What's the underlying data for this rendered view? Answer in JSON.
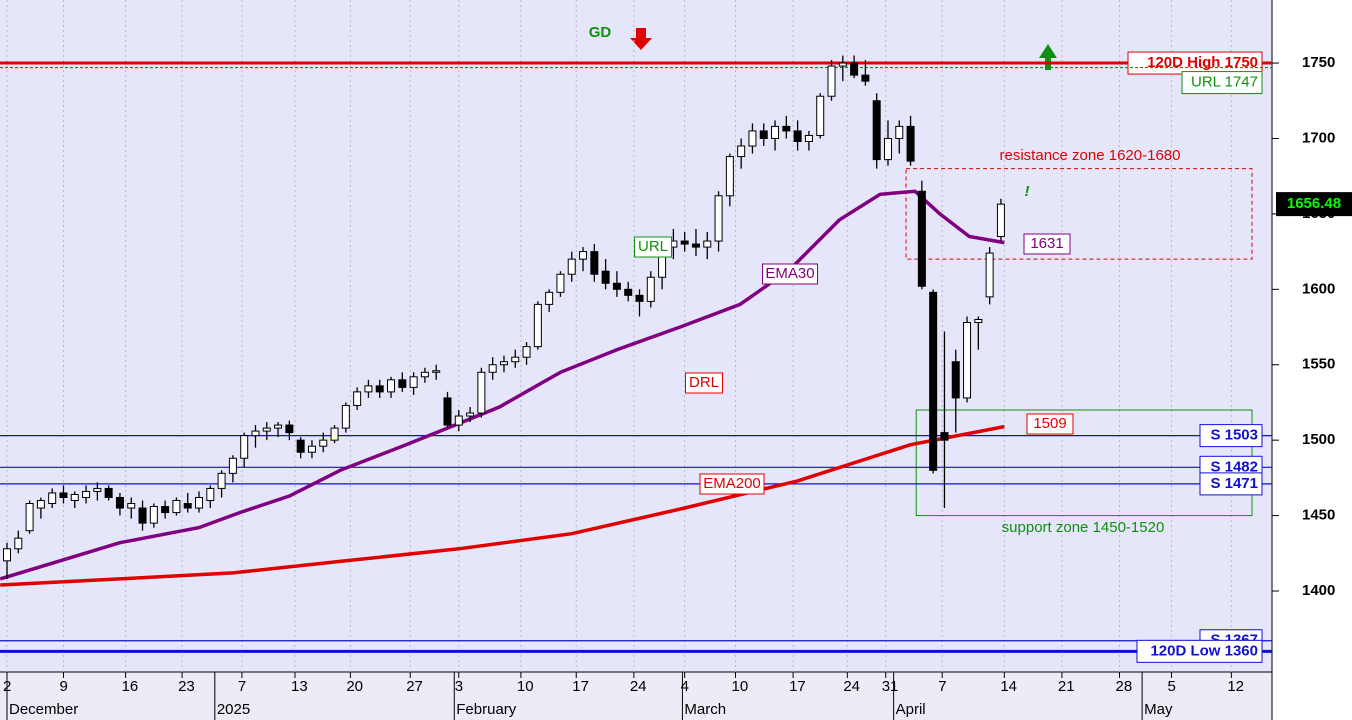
{
  "chart_data": {
    "type": "candlestick",
    "xlim": [
      -0.62,
      112
    ],
    "ylim": [
      1346.3,
      1791.8
    ],
    "yticks": [
      1400,
      1450,
      1500,
      1550,
      1600,
      1650,
      1700,
      1750
    ],
    "xticks": [
      {
        "value": 0,
        "label": "2"
      },
      {
        "value": 5,
        "label": "9"
      },
      {
        "value": 10.5,
        "label": "16"
      },
      {
        "value": 15.5,
        "label": "23"
      },
      {
        "value": 20.8,
        "label": "7"
      },
      {
        "value": 25.5,
        "label": "13"
      },
      {
        "value": 30.4,
        "label": "20"
      },
      {
        "value": 35.7,
        "label": "27"
      },
      {
        "value": 40,
        "label": "3"
      },
      {
        "value": 45.5,
        "label": "10"
      },
      {
        "value": 50.4,
        "label": "17"
      },
      {
        "value": 55.5,
        "label": "24"
      },
      {
        "value": 60,
        "label": "4"
      },
      {
        "value": 64.5,
        "label": "10"
      },
      {
        "value": 69.6,
        "label": "17"
      },
      {
        "value": 74.4,
        "label": "24"
      },
      {
        "value": 77.8,
        "label": "31"
      },
      {
        "value": 82.8,
        "label": "7"
      },
      {
        "value": 88.3,
        "label": "14"
      },
      {
        "value": 93.4,
        "label": "21"
      },
      {
        "value": 98.5,
        "label": "28"
      },
      {
        "value": 103.1,
        "label": "5"
      },
      {
        "value": 108.4,
        "label": "12"
      }
    ],
    "periods": [
      {
        "value": 0,
        "label": "December"
      },
      {
        "value": 18.4,
        "label": "2025"
      },
      {
        "value": 39.6,
        "label": "February"
      },
      {
        "value": 59.8,
        "label": "March"
      },
      {
        "value": 78.5,
        "label": "April"
      },
      {
        "value": 100.5,
        "label": "May"
      }
    ],
    "candles": [
      [
        1420,
        1432,
        1408,
        1428
      ],
      [
        1428,
        1440,
        1425,
        1435
      ],
      [
        1440,
        1460,
        1438,
        1458
      ],
      [
        1455,
        1462,
        1448,
        1460
      ],
      [
        1458,
        1468,
        1455,
        1465
      ],
      [
        1465,
        1470,
        1458,
        1462
      ],
      [
        1460,
        1466,
        1455,
        1464
      ],
      [
        1462,
        1470,
        1458,
        1466
      ],
      [
        1466,
        1472,
        1460,
        1468
      ],
      [
        1468,
        1470,
        1460,
        1462
      ],
      [
        1462,
        1465,
        1450,
        1455
      ],
      [
        1455,
        1462,
        1448,
        1458
      ],
      [
        1455,
        1460,
        1440,
        1445
      ],
      [
        1445,
        1458,
        1442,
        1456
      ],
      [
        1456,
        1460,
        1448,
        1452
      ],
      [
        1452,
        1462,
        1450,
        1460
      ],
      [
        1458,
        1465,
        1452,
        1455
      ],
      [
        1455,
        1466,
        1452,
        1462
      ],
      [
        1460,
        1470,
        1455,
        1468
      ],
      [
        1468,
        1480,
        1462,
        1478
      ],
      [
        1478,
        1490,
        1472,
        1488
      ],
      [
        1488,
        1505,
        1482,
        1503
      ],
      [
        1503,
        1510,
        1495,
        1506
      ],
      [
        1506,
        1512,
        1500,
        1508
      ],
      [
        1508,
        1512,
        1502,
        1510
      ],
      [
        1510,
        1513,
        1500,
        1505
      ],
      [
        1500,
        1502,
        1488,
        1492
      ],
      [
        1492,
        1500,
        1488,
        1496
      ],
      [
        1496,
        1505,
        1492,
        1500
      ],
      [
        1500,
        1510,
        1498,
        1508
      ],
      [
        1508,
        1525,
        1505,
        1523
      ],
      [
        1523,
        1535,
        1520,
        1532
      ],
      [
        1532,
        1540,
        1528,
        1536
      ],
      [
        1536,
        1540,
        1528,
        1532
      ],
      [
        1532,
        1542,
        1528,
        1540
      ],
      [
        1540,
        1545,
        1532,
        1535
      ],
      [
        1535,
        1545,
        1530,
        1542
      ],
      [
        1542,
        1548,
        1538,
        1545
      ],
      [
        1545,
        1550,
        1540,
        1546
      ],
      [
        1528,
        1532,
        1508,
        1510
      ],
      [
        1510,
        1520,
        1506,
        1516
      ],
      [
        1516,
        1522,
        1512,
        1518
      ],
      [
        1518,
        1548,
        1515,
        1545
      ],
      [
        1545,
        1555,
        1540,
        1550
      ],
      [
        1550,
        1556,
        1545,
        1552
      ],
      [
        1552,
        1560,
        1548,
        1555
      ],
      [
        1555,
        1565,
        1550,
        1562
      ],
      [
        1562,
        1592,
        1560,
        1590
      ],
      [
        1590,
        1600,
        1585,
        1598
      ],
      [
        1598,
        1612,
        1595,
        1610
      ],
      [
        1610,
        1625,
        1605,
        1620
      ],
      [
        1620,
        1628,
        1612,
        1625
      ],
      [
        1625,
        1630,
        1605,
        1610
      ],
      [
        1612,
        1620,
        1600,
        1604
      ],
      [
        1604,
        1612,
        1595,
        1600
      ],
      [
        1600,
        1605,
        1592,
        1596
      ],
      [
        1596,
        1600,
        1582,
        1592
      ],
      [
        1592,
        1612,
        1588,
        1608
      ],
      [
        1608,
        1630,
        1600,
        1628
      ],
      [
        1628,
        1640,
        1620,
        1632
      ],
      [
        1632,
        1638,
        1625,
        1630
      ],
      [
        1630,
        1640,
        1622,
        1628
      ],
      [
        1628,
        1638,
        1620,
        1632
      ],
      [
        1632,
        1665,
        1625,
        1662
      ],
      [
        1662,
        1690,
        1655,
        1688
      ],
      [
        1688,
        1700,
        1680,
        1695
      ],
      [
        1695,
        1710,
        1690,
        1705
      ],
      [
        1705,
        1710,
        1695,
        1700
      ],
      [
        1700,
        1712,
        1692,
        1708
      ],
      [
        1708,
        1715,
        1700,
        1705
      ],
      [
        1705,
        1712,
        1692,
        1698
      ],
      [
        1698,
        1705,
        1692,
        1702
      ],
      [
        1702,
        1730,
        1700,
        1728
      ],
      [
        1728,
        1752,
        1725,
        1748
      ],
      [
        1748,
        1755,
        1738,
        1750
      ],
      [
        1750,
        1755,
        1740,
        1742
      ],
      [
        1742,
        1752,
        1735,
        1738
      ],
      [
        1725,
        1730,
        1680,
        1686
      ],
      [
        1686,
        1712,
        1682,
        1700
      ],
      [
        1700,
        1712,
        1690,
        1708
      ],
      [
        1708,
        1715,
        1682,
        1685
      ],
      [
        1665,
        1672,
        1600,
        1602
      ],
      [
        1598,
        1600,
        1478,
        1480
      ],
      [
        1505,
        1572,
        1455,
        1500
      ],
      [
        1552,
        1560,
        1505,
        1528
      ],
      [
        1528,
        1582,
        1525,
        1578
      ],
      [
        1578,
        1582,
        1560,
        1580
      ],
      [
        1595,
        1628,
        1590,
        1624
      ],
      [
        1635,
        1660,
        1632,
        1656.48
      ]
    ],
    "series": [
      {
        "name": "EMA30",
        "color": "#800080",
        "x": [
          -0.6,
          4.7,
          10,
          17,
          20.6,
          25,
          29.5,
          35,
          39,
          43.6,
          49,
          54,
          59.6,
          64.9,
          69.3,
          73.7,
          77.3,
          80.4,
          82.6,
          85.2,
          88.3
        ],
        "values": [
          1408,
          1420,
          1432,
          1442,
          1452,
          1463,
          1480,
          1496,
          1508,
          1522,
          1545,
          1560,
          1575,
          1590,
          1613,
          1646,
          1663,
          1665,
          1650,
          1635,
          1631
        ]
      },
      {
        "name": "EMA200",
        "color": "#e00000",
        "x": [
          -0.6,
          10,
          20,
          30,
          40,
          50,
          60,
          70,
          80,
          88.3
        ],
        "values": [
          1404,
          1408,
          1412,
          1420,
          1428,
          1438,
          1455,
          1473,
          1497,
          1509
        ]
      }
    ],
    "levels": [
      {
        "label": "120D High 1750",
        "value": 1750,
        "color": "#e00000"
      },
      {
        "label": "URL 1747",
        "value": 1747,
        "color": "#109010"
      },
      {
        "label": "S 1503",
        "value": 1503,
        "color": "#1010d0"
      },
      {
        "label": "S 1482",
        "value": 1482,
        "color": "#1010d0"
      },
      {
        "label": "S 1471",
        "value": 1471,
        "color": "#1010d0"
      },
      {
        "label": "S 1367",
        "value": 1367,
        "color": "#1010d0"
      },
      {
        "label": "120D Low 1360",
        "value": 1360,
        "color": "#1010d0"
      }
    ],
    "zones": [
      {
        "label": "resistance zone 1620-1680",
        "low": 1620,
        "high": 1680,
        "start": 79.6,
        "color": "#e00000"
      },
      {
        "label": "support zone 1450-1520",
        "low": 1450,
        "high": 1520,
        "start": 80.5,
        "color": "#109010"
      }
    ],
    "annotations": [
      {
        "text": "GD",
        "color": "#109010"
      },
      {
        "text": "URL",
        "color": "#109010"
      },
      {
        "text": "DRL",
        "color": "#e00000"
      },
      {
        "text": "EMA30",
        "color": "#800080"
      },
      {
        "text": "EMA200",
        "color": "#e00000"
      },
      {
        "text": "1631",
        "color": "#800080"
      },
      {
        "text": "1509",
        "color": "#e00000"
      },
      {
        "text": "!",
        "color": "#109010"
      }
    ],
    "last_price": 1656.48
  }
}
